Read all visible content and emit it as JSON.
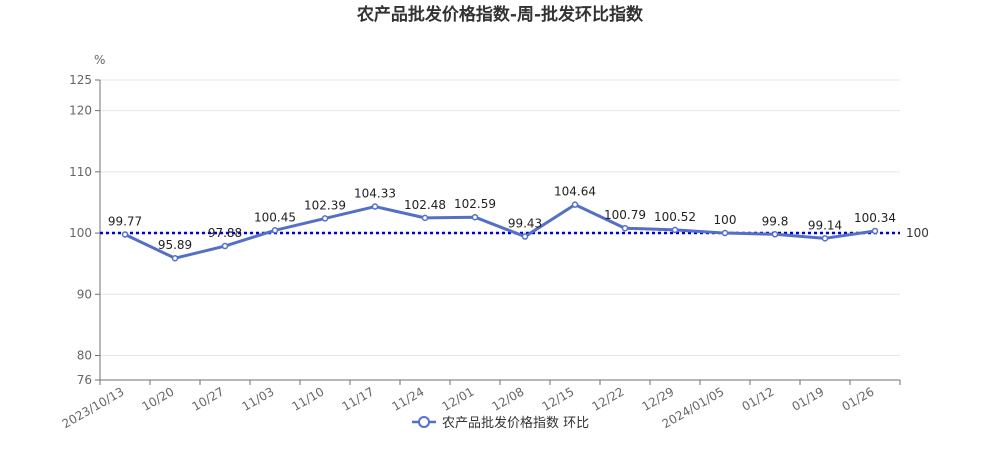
{
  "chart_data": {
    "type": "line",
    "title": "农产品批发价格指数-周-批发环比指数",
    "unit": "%",
    "categories": [
      "2023/10/13",
      "10/20",
      "10/27",
      "11/03",
      "11/10",
      "11/17",
      "11/24",
      "12/01",
      "12/08",
      "12/15",
      "12/22",
      "12/29",
      "2024/01/05",
      "01/12",
      "01/19",
      "01/26"
    ],
    "series": [
      {
        "name": "农产品批发价格指数 环比",
        "values": [
          99.77,
          95.89,
          97.88,
          100.45,
          102.39,
          104.33,
          102.48,
          102.59,
          99.43,
          104.64,
          100.79,
          100.52,
          100,
          99.8,
          99.14,
          100.34
        ]
      }
    ],
    "ylim": [
      76,
      125
    ],
    "yticks": [
      76,
      80,
      90,
      100,
      110,
      120,
      125
    ],
    "reference_line": {
      "value": 100,
      "label": "100"
    },
    "legend_position": "bottom",
    "grid": true,
    "colors": {
      "line": "#5470c6",
      "reference": "#0000cc",
      "grid": "#e0e6f1"
    }
  }
}
